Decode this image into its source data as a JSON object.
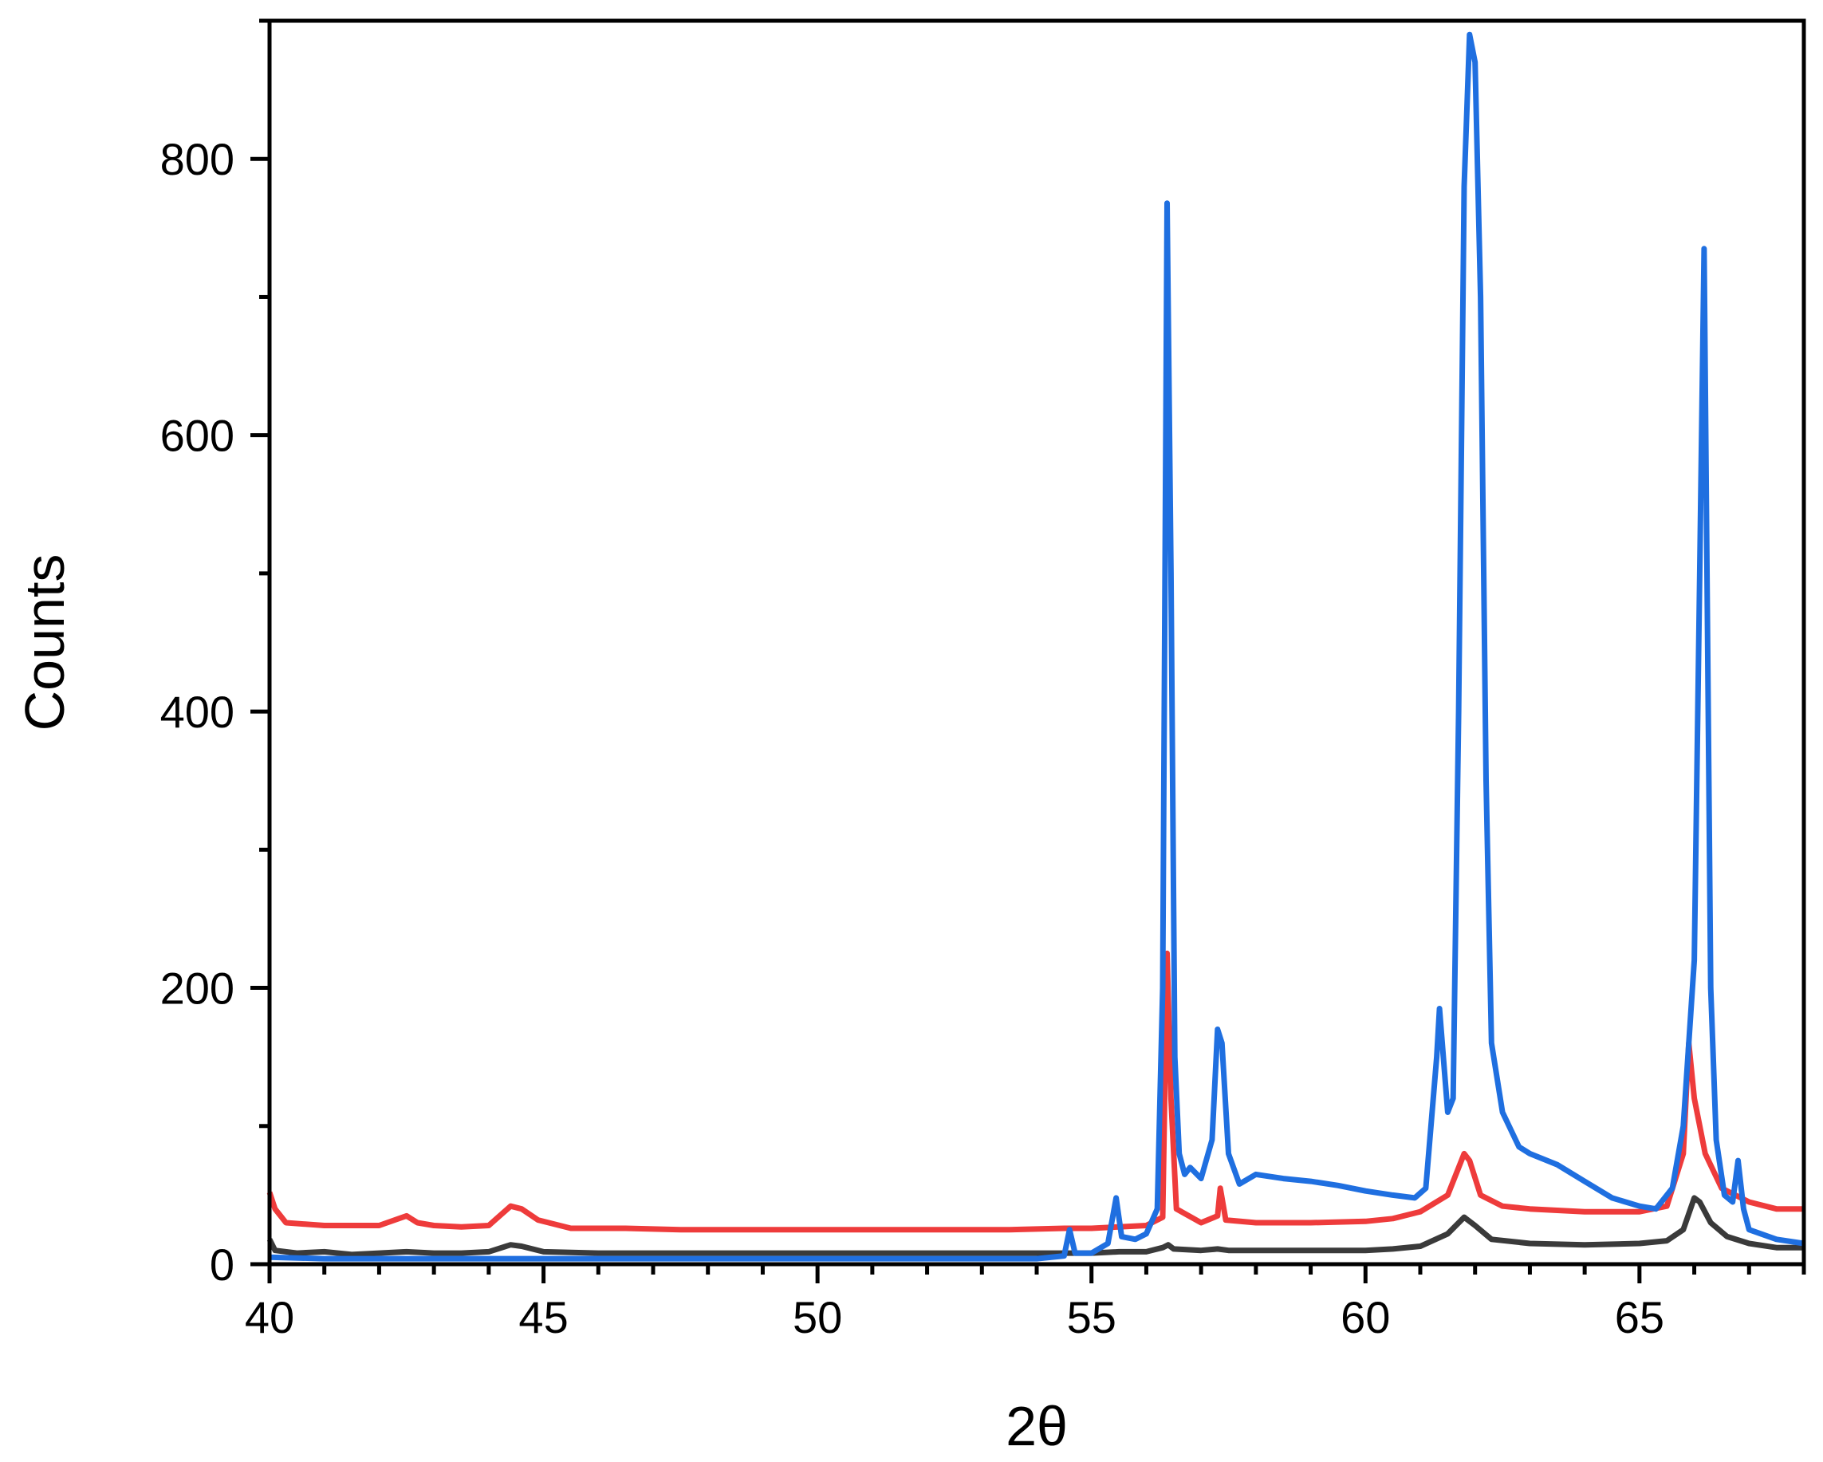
{
  "chart_data": {
    "type": "line",
    "title": "",
    "xlabel": "2θ",
    "ylabel": "Counts",
    "xlim": [
      40,
      68
    ],
    "ylim": [
      0,
      900
    ],
    "xticks": [
      40,
      45,
      50,
      55,
      60,
      65
    ],
    "yticks": [
      0,
      200,
      400,
      600,
      800
    ],
    "grid": false,
    "legend": "none",
    "series": [
      {
        "color": "#3a3a3a",
        "points": [
          [
            40.0,
            18
          ],
          [
            40.1,
            10
          ],
          [
            40.5,
            8
          ],
          [
            41.0,
            9
          ],
          [
            41.5,
            7
          ],
          [
            42.0,
            8
          ],
          [
            42.5,
            9
          ],
          [
            43.0,
            8
          ],
          [
            43.5,
            8
          ],
          [
            44.0,
            9
          ],
          [
            44.4,
            14
          ],
          [
            44.6,
            13
          ],
          [
            45.0,
            9
          ],
          [
            46.0,
            8
          ],
          [
            47.0,
            8
          ],
          [
            48.0,
            8
          ],
          [
            49.0,
            8
          ],
          [
            50.0,
            8
          ],
          [
            51.0,
            8
          ],
          [
            52.0,
            8
          ],
          [
            53.0,
            8
          ],
          [
            54.0,
            8
          ],
          [
            55.0,
            8
          ],
          [
            55.5,
            9
          ],
          [
            56.0,
            9
          ],
          [
            56.3,
            12
          ],
          [
            56.4,
            14
          ],
          [
            56.5,
            11
          ],
          [
            57.0,
            10
          ],
          [
            57.3,
            11
          ],
          [
            57.5,
            10
          ],
          [
            58.0,
            10
          ],
          [
            59.0,
            10
          ],
          [
            60.0,
            10
          ],
          [
            60.5,
            11
          ],
          [
            61.0,
            13
          ],
          [
            61.5,
            22
          ],
          [
            61.8,
            34
          ],
          [
            62.0,
            28
          ],
          [
            62.3,
            18
          ],
          [
            63.0,
            15
          ],
          [
            64.0,
            14
          ],
          [
            65.0,
            15
          ],
          [
            65.5,
            17
          ],
          [
            65.8,
            25
          ],
          [
            66.0,
            48
          ],
          [
            66.1,
            45
          ],
          [
            66.3,
            30
          ],
          [
            66.6,
            20
          ],
          [
            67.0,
            15
          ],
          [
            67.5,
            12
          ],
          [
            68.0,
            12
          ]
        ]
      },
      {
        "color": "#ee3b3b",
        "points": [
          [
            40.0,
            52
          ],
          [
            40.1,
            40
          ],
          [
            40.3,
            30
          ],
          [
            41.0,
            28
          ],
          [
            42.0,
            28
          ],
          [
            42.5,
            35
          ],
          [
            42.7,
            30
          ],
          [
            43.0,
            28
          ],
          [
            43.5,
            27
          ],
          [
            44.0,
            28
          ],
          [
            44.4,
            42
          ],
          [
            44.6,
            40
          ],
          [
            44.9,
            32
          ],
          [
            45.5,
            26
          ],
          [
            46.5,
            26
          ],
          [
            47.5,
            25
          ],
          [
            48.5,
            25
          ],
          [
            49.5,
            25
          ],
          [
            50.5,
            25
          ],
          [
            51.5,
            25
          ],
          [
            52.5,
            25
          ],
          [
            53.5,
            25
          ],
          [
            54.5,
            26
          ],
          [
            55.0,
            26
          ],
          [
            55.5,
            27
          ],
          [
            56.0,
            28
          ],
          [
            56.3,
            34
          ],
          [
            56.38,
            225
          ],
          [
            56.45,
            120
          ],
          [
            56.55,
            40
          ],
          [
            57.0,
            30
          ],
          [
            57.3,
            35
          ],
          [
            57.35,
            55
          ],
          [
            57.45,
            32
          ],
          [
            58.0,
            30
          ],
          [
            59.0,
            30
          ],
          [
            60.0,
            31
          ],
          [
            60.5,
            33
          ],
          [
            61.0,
            38
          ],
          [
            61.5,
            50
          ],
          [
            61.8,
            80
          ],
          [
            61.9,
            75
          ],
          [
            62.1,
            50
          ],
          [
            62.5,
            42
          ],
          [
            63.0,
            40
          ],
          [
            64.0,
            38
          ],
          [
            65.0,
            38
          ],
          [
            65.5,
            42
          ],
          [
            65.8,
            80
          ],
          [
            65.9,
            160
          ],
          [
            66.0,
            120
          ],
          [
            66.2,
            80
          ],
          [
            66.5,
            55
          ],
          [
            67.0,
            45
          ],
          [
            67.5,
            40
          ],
          [
            68.0,
            40
          ]
        ]
      },
      {
        "color": "#1f6fe0",
        "points": [
          [
            40.0,
            5
          ],
          [
            41.0,
            4
          ],
          [
            42.0,
            4
          ],
          [
            43.0,
            4
          ],
          [
            44.0,
            4
          ],
          [
            45.0,
            4
          ],
          [
            46.0,
            4
          ],
          [
            47.0,
            4
          ],
          [
            48.0,
            4
          ],
          [
            49.0,
            4
          ],
          [
            50.0,
            4
          ],
          [
            51.0,
            4
          ],
          [
            52.0,
            4
          ],
          [
            53.0,
            4
          ],
          [
            54.0,
            4
          ],
          [
            54.5,
            6
          ],
          [
            54.6,
            25
          ],
          [
            54.7,
            8
          ],
          [
            55.0,
            8
          ],
          [
            55.3,
            15
          ],
          [
            55.45,
            48
          ],
          [
            55.55,
            20
          ],
          [
            55.8,
            18
          ],
          [
            56.0,
            22
          ],
          [
            56.2,
            40
          ],
          [
            56.3,
            200
          ],
          [
            56.38,
            768
          ],
          [
            56.45,
            500
          ],
          [
            56.52,
            150
          ],
          [
            56.6,
            80
          ],
          [
            56.7,
            65
          ],
          [
            56.8,
            70
          ],
          [
            57.0,
            62
          ],
          [
            57.2,
            90
          ],
          [
            57.3,
            170
          ],
          [
            57.38,
            160
          ],
          [
            57.5,
            80
          ],
          [
            57.7,
            58
          ],
          [
            58.0,
            65
          ],
          [
            58.5,
            62
          ],
          [
            59.0,
            60
          ],
          [
            59.5,
            57
          ],
          [
            60.0,
            53
          ],
          [
            60.5,
            50
          ],
          [
            60.9,
            48
          ],
          [
            61.1,
            55
          ],
          [
            61.3,
            150
          ],
          [
            61.35,
            185
          ],
          [
            61.5,
            110
          ],
          [
            61.6,
            120
          ],
          [
            61.7,
            400
          ],
          [
            61.8,
            780
          ],
          [
            61.9,
            890
          ],
          [
            62.0,
            870
          ],
          [
            62.1,
            700
          ],
          [
            62.2,
            350
          ],
          [
            62.3,
            160
          ],
          [
            62.5,
            110
          ],
          [
            62.8,
            85
          ],
          [
            63.0,
            80
          ],
          [
            63.5,
            72
          ],
          [
            64.0,
            60
          ],
          [
            64.5,
            48
          ],
          [
            65.0,
            42
          ],
          [
            65.3,
            40
          ],
          [
            65.6,
            55
          ],
          [
            65.8,
            100
          ],
          [
            66.0,
            220
          ],
          [
            66.1,
            500
          ],
          [
            66.18,
            735
          ],
          [
            66.3,
            200
          ],
          [
            66.4,
            90
          ],
          [
            66.55,
            50
          ],
          [
            66.7,
            45
          ],
          [
            66.8,
            75
          ],
          [
            66.9,
            40
          ],
          [
            67.0,
            25
          ],
          [
            67.5,
            18
          ],
          [
            68.0,
            15
          ]
        ]
      }
    ]
  }
}
